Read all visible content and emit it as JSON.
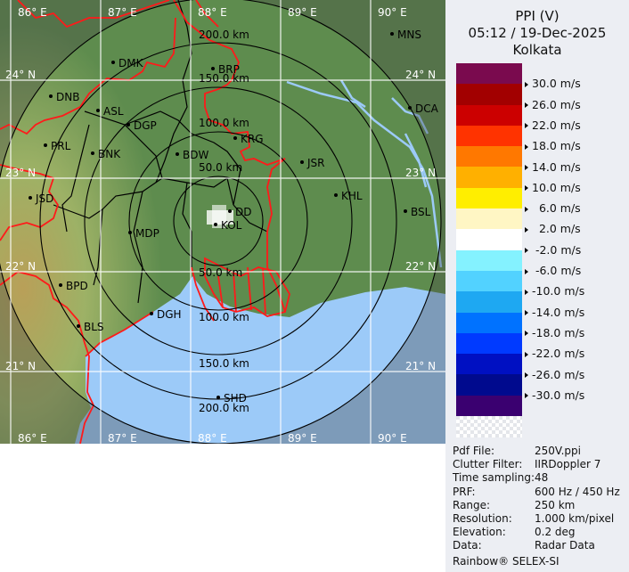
{
  "header": {
    "product": "PPI (V)",
    "datetime": "05:12 / 19-Dec-2025",
    "site": "Kolkata"
  },
  "legend": {
    "unit": "m/s",
    "labels": [
      "30.0 m/s",
      "26.0 m/s",
      "22.0 m/s",
      "18.0 m/s",
      "14.0 m/s",
      "10.0 m/s",
      "  6.0 m/s",
      "  2.0 m/s",
      " -2.0 m/s",
      " -6.0 m/s",
      "-10.0 m/s",
      "-14.0 m/s",
      "-18.0 m/s",
      "-22.0 m/s",
      "-26.0 m/s",
      "-30.0 m/s"
    ],
    "colors": [
      "#7a0a4e",
      "#a20000",
      "#cc0000",
      "#ff3300",
      "#ff7800",
      "#ffb000",
      "#ffee00",
      "#fff6c4",
      "#ffffff",
      "#84f2ff",
      "#52d2ff",
      "#1ea8f2",
      "#0072ff",
      "#003aff",
      "#0010c2",
      "#000a8e",
      "#3a0070"
    ]
  },
  "info": {
    "rows": [
      {
        "k": "Pdf File:",
        "v": "250V.ppi"
      },
      {
        "k": "Clutter Filter:",
        "v": "IIRDoppler 7"
      },
      {
        "k": "Time sampling:",
        "v": "48"
      },
      {
        "k": "PRF:",
        "v": "600 Hz / 450 Hz"
      },
      {
        "k": "Range:",
        "v": "250 km"
      },
      {
        "k": "Resolution:",
        "v": "1.000 km/pixel"
      },
      {
        "k": "Elevation:",
        "v": "0.2 deg"
      },
      {
        "k": "Data:",
        "v": "Radar Data"
      }
    ],
    "footer": "Rainbow® SELEX-SI"
  },
  "map": {
    "lon_labels": [
      "86° E",
      "87° E",
      "88° E",
      "89° E",
      "90° E"
    ],
    "lat_labels": [
      "24° N",
      "23° N",
      "22° N",
      "21° N"
    ],
    "range_labels": [
      "50.0 km",
      "100.0 km",
      "150.0 km",
      "200.0 km"
    ],
    "stations": [
      "MNS",
      "DMK",
      "BRP",
      "DNB",
      "ASL",
      "DCA",
      "DGP",
      "KRG",
      "PRL",
      "BNK",
      "BDW",
      "JSR",
      "KHL",
      "JSD",
      "BSL",
      "DD",
      "KOL",
      "MDP",
      "BPD",
      "BLS",
      "DGH",
      "SHD"
    ],
    "colors": {
      "land": "#5e8c4e",
      "sea": "#9ccaf8",
      "border": "#ff1a1a",
      "district": "#000000",
      "grid": "#ffffff"
    }
  }
}
